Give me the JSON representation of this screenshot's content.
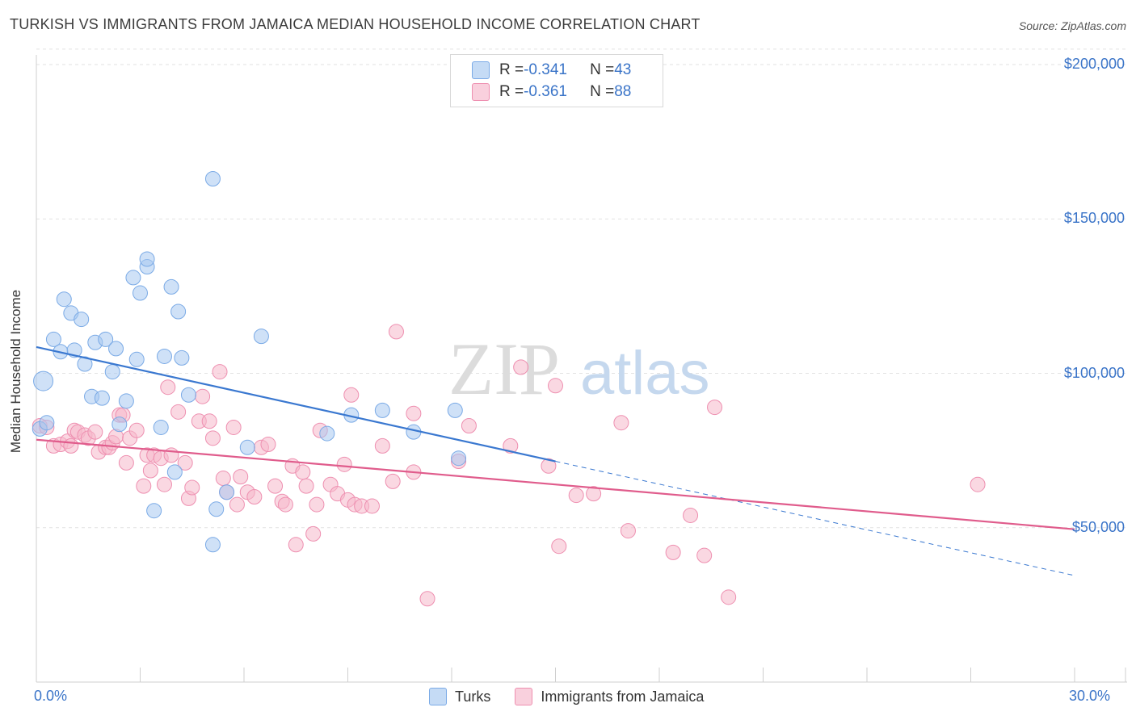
{
  "title": "TURKISH VS IMMIGRANTS FROM JAMAICA MEDIAN HOUSEHOLD INCOME CORRELATION CHART",
  "source": "Source: ZipAtlas.com",
  "watermark": {
    "zip": "ZIP",
    "atlas": "atlas"
  },
  "legend": {
    "rows": [
      {
        "r_label": "R = ",
        "r_value": "-0.341",
        "n_label": "N = ",
        "n_value": "43",
        "color": "#a8c8f0"
      },
      {
        "r_label": "R = ",
        "r_value": "-0.361",
        "n_label": "N = ",
        "n_value": "88",
        "color": "#f5b8cb"
      }
    ]
  },
  "bottom_legend": [
    {
      "label": "Turks",
      "color": "#a8c8f0"
    },
    {
      "label": "Immigrants from Jamaica",
      "color": "#f5b8cb"
    }
  ],
  "chart_data": {
    "type": "scatter",
    "ylabel": "Median Household Income",
    "xlim": [
      0,
      30
    ],
    "ylim": [
      0,
      200000
    ],
    "x_tick_labels": [
      "0.0%",
      "30.0%"
    ],
    "y_ticks": [
      {
        "value": 50000,
        "label": "$50,000"
      },
      {
        "value": 100000,
        "label": "$100,000"
      },
      {
        "value": 150000,
        "label": "$150,000"
      },
      {
        "value": 200000,
        "label": "$200,000"
      }
    ],
    "grid": true,
    "legend_position": "top-center",
    "series": [
      {
        "name": "Turks",
        "color": "#7aaae6",
        "fill": "#a8c8f0",
        "trend": {
          "x0": 0,
          "y0": 108500,
          "x1": 15,
          "y1": 71500,
          "dashed_to_x": 30,
          "dashed_to_y": 34500,
          "color": "#3a78d0"
        },
        "points": [
          [
            0.2,
            97500
          ],
          [
            0.5,
            111000
          ],
          [
            0.7,
            107000
          ],
          [
            0.8,
            124000
          ],
          [
            1.0,
            119500
          ],
          [
            1.1,
            107500
          ],
          [
            1.3,
            117500
          ],
          [
            1.4,
            103000
          ],
          [
            1.6,
            92500
          ],
          [
            1.7,
            110000
          ],
          [
            1.9,
            92000
          ],
          [
            2.0,
            111000
          ],
          [
            2.2,
            100500
          ],
          [
            2.3,
            108000
          ],
          [
            2.4,
            83500
          ],
          [
            2.6,
            91000
          ],
          [
            2.8,
            131000
          ],
          [
            2.9,
            104500
          ],
          [
            3.0,
            126000
          ],
          [
            3.2,
            134500
          ],
          [
            3.2,
            137000
          ],
          [
            3.4,
            55500
          ],
          [
            3.6,
            82500
          ],
          [
            3.7,
            105500
          ],
          [
            3.9,
            128000
          ],
          [
            4.0,
            68000
          ],
          [
            4.1,
            120000
          ],
          [
            4.2,
            105000
          ],
          [
            4.4,
            93000
          ],
          [
            5.1,
            44500
          ],
          [
            5.1,
            163000
          ],
          [
            5.2,
            56000
          ],
          [
            5.5,
            61500
          ],
          [
            6.1,
            76000
          ],
          [
            6.5,
            112000
          ],
          [
            8.4,
            80500
          ],
          [
            9.1,
            86500
          ],
          [
            10.0,
            88000
          ],
          [
            10.9,
            81000
          ],
          [
            12.1,
            88000
          ],
          [
            12.2,
            72500
          ],
          [
            0.1,
            82000
          ],
          [
            0.3,
            84000
          ]
        ],
        "sizes_large": [
          [
            0.2,
            97500
          ]
        ]
      },
      {
        "name": "Immigrants from Jamaica",
        "color": "#ee8fb0",
        "fill": "#f5b8cb",
        "trend": {
          "x0": 0,
          "y0": 78500,
          "x1": 30,
          "y1": 49500,
          "color": "#e05c8c"
        },
        "points": [
          [
            0.1,
            83000
          ],
          [
            0.3,
            82500
          ],
          [
            0.5,
            76500
          ],
          [
            0.7,
            77000
          ],
          [
            0.9,
            78000
          ],
          [
            1.0,
            76500
          ],
          [
            1.1,
            81500
          ],
          [
            1.2,
            81000
          ],
          [
            1.4,
            80000
          ],
          [
            1.5,
            79000
          ],
          [
            1.7,
            81000
          ],
          [
            1.8,
            74500
          ],
          [
            2.0,
            76000
          ],
          [
            2.1,
            76000
          ],
          [
            2.2,
            77500
          ],
          [
            2.3,
            79500
          ],
          [
            2.4,
            86500
          ],
          [
            2.5,
            86500
          ],
          [
            2.6,
            71000
          ],
          [
            2.7,
            79000
          ],
          [
            2.9,
            81500
          ],
          [
            3.1,
            63500
          ],
          [
            3.2,
            73500
          ],
          [
            3.3,
            68500
          ],
          [
            3.4,
            73500
          ],
          [
            3.6,
            72500
          ],
          [
            3.7,
            64000
          ],
          [
            3.8,
            95500
          ],
          [
            3.9,
            73500
          ],
          [
            4.1,
            87500
          ],
          [
            4.3,
            71000
          ],
          [
            4.4,
            59500
          ],
          [
            4.5,
            63000
          ],
          [
            4.7,
            84500
          ],
          [
            4.8,
            92500
          ],
          [
            5.0,
            84500
          ],
          [
            5.1,
            79000
          ],
          [
            5.3,
            100500
          ],
          [
            5.4,
            66000
          ],
          [
            5.5,
            61500
          ],
          [
            5.7,
            82500
          ],
          [
            5.8,
            57500
          ],
          [
            5.9,
            66500
          ],
          [
            6.1,
            61500
          ],
          [
            6.3,
            60000
          ],
          [
            6.5,
            76000
          ],
          [
            6.7,
            77000
          ],
          [
            6.9,
            63500
          ],
          [
            7.1,
            58500
          ],
          [
            7.2,
            57500
          ],
          [
            7.4,
            70000
          ],
          [
            7.5,
            44500
          ],
          [
            7.7,
            68000
          ],
          [
            7.8,
            63500
          ],
          [
            8.0,
            48000
          ],
          [
            8.1,
            57500
          ],
          [
            8.2,
            81500
          ],
          [
            8.5,
            64000
          ],
          [
            8.7,
            61000
          ],
          [
            8.9,
            70500
          ],
          [
            9.0,
            59000
          ],
          [
            9.2,
            57500
          ],
          [
            9.1,
            93000
          ],
          [
            9.4,
            57000
          ],
          [
            9.7,
            57000
          ],
          [
            10.0,
            76500
          ],
          [
            10.3,
            65000
          ],
          [
            10.4,
            113500
          ],
          [
            10.9,
            68000
          ],
          [
            10.9,
            87000
          ],
          [
            11.3,
            27000
          ],
          [
            12.2,
            71500
          ],
          [
            12.5,
            83000
          ],
          [
            13.7,
            76500
          ],
          [
            14.0,
            102000
          ],
          [
            14.8,
            70000
          ],
          [
            15.0,
            96000
          ],
          [
            15.1,
            44000
          ],
          [
            15.6,
            60500
          ],
          [
            16.1,
            61000
          ],
          [
            16.9,
            84000
          ],
          [
            17.1,
            49000
          ],
          [
            18.4,
            42000
          ],
          [
            18.9,
            54000
          ],
          [
            19.3,
            41000
          ],
          [
            19.6,
            89000
          ],
          [
            20.0,
            27500
          ],
          [
            27.2,
            64000
          ]
        ]
      }
    ]
  }
}
